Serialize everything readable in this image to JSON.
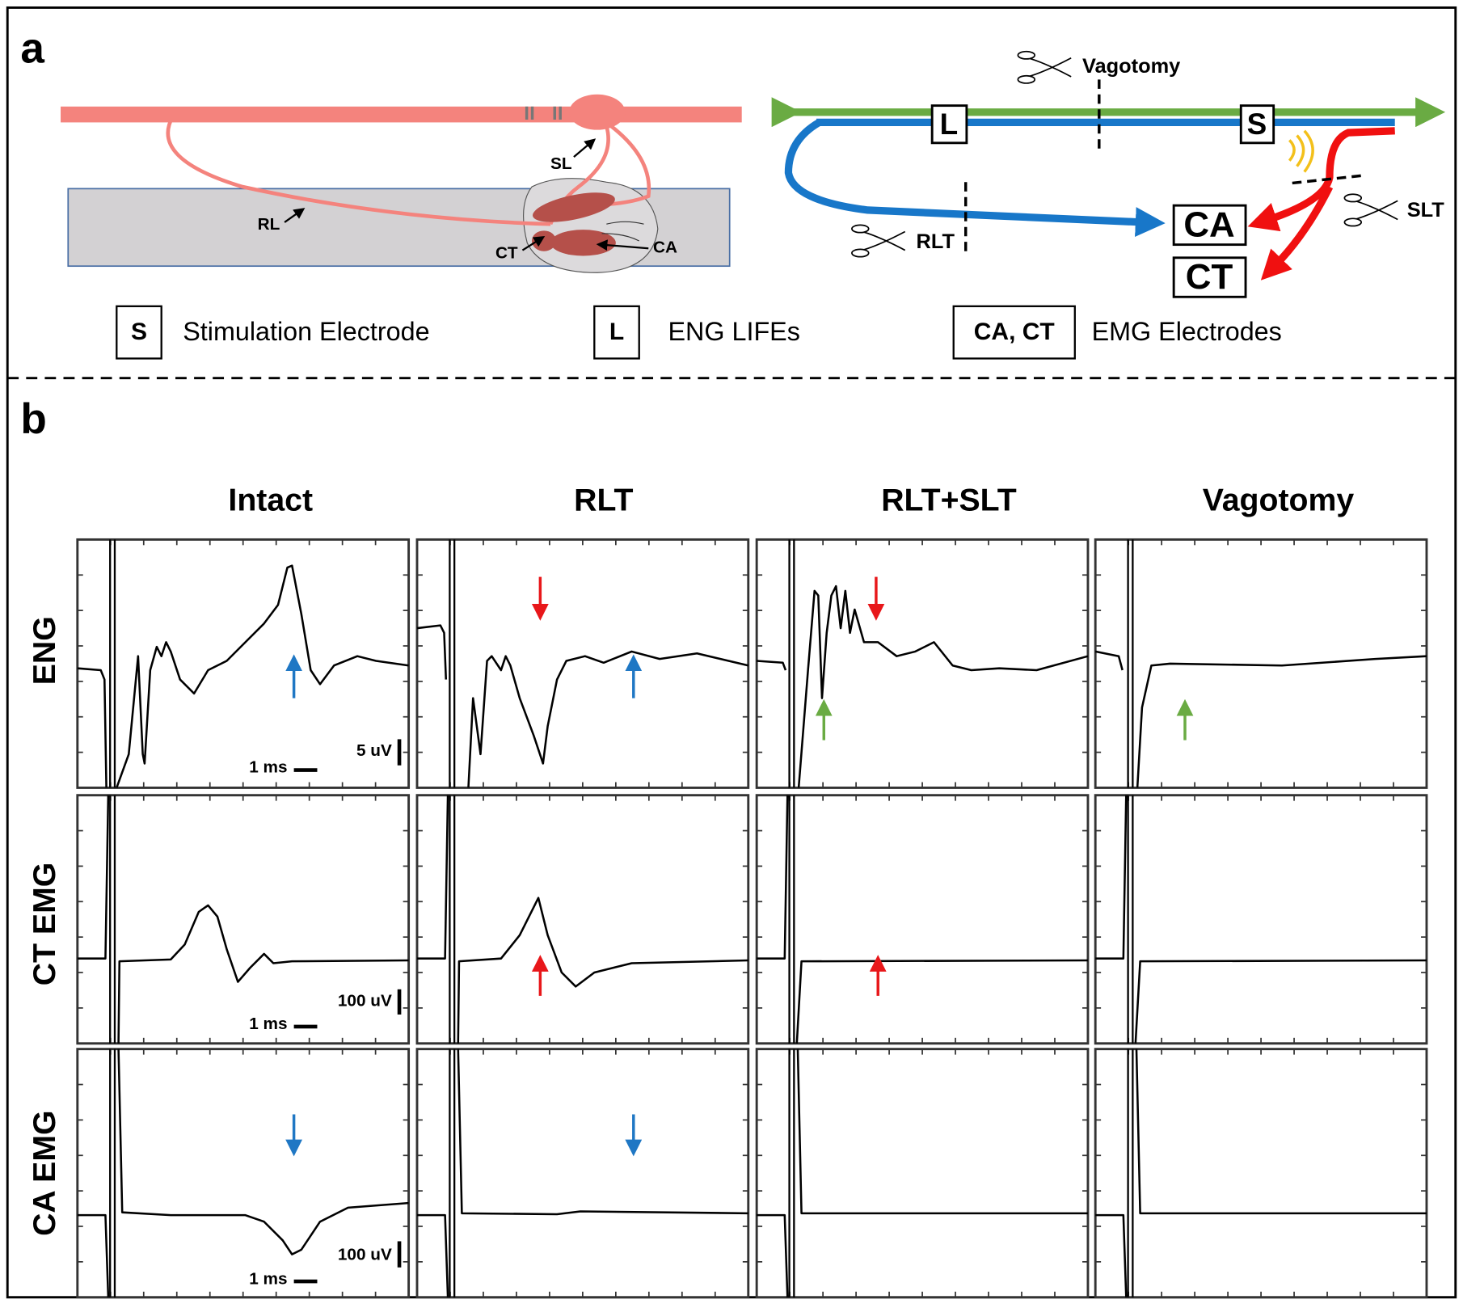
{
  "panel_a": {
    "label": "a",
    "anatomy": {
      "sl": "SL",
      "rl": "RL",
      "ct": "CT",
      "ca": "CA"
    },
    "schematic": {
      "vagotomy": "Vagotomy",
      "electrode_l": "L",
      "electrode_s": "S",
      "muscle_ca": "CA",
      "muscle_ct": "CT",
      "cut_rlt": "RLT",
      "cut_slt": "SLT"
    },
    "legend": [
      {
        "symbol": "S",
        "text": "Stimulation Electrode"
      },
      {
        "symbol": "L",
        "text": "ENG LIFEs"
      },
      {
        "symbol": "CA, CT",
        "text": "EMG Electrodes"
      }
    ]
  },
  "panel_b": {
    "label": "b",
    "columns": [
      "Intact",
      "RLT",
      "RLT+SLT",
      "Vagotomy"
    ],
    "rows": [
      "ENG",
      "CT EMG",
      "CA EMG"
    ],
    "scale_bars": [
      {
        "time": "1 ms",
        "amplitude": "5 uV"
      },
      {
        "time": "1 ms",
        "amplitude": "100 uV"
      },
      {
        "time": "1 ms",
        "amplitude": "100 uV"
      }
    ]
  }
}
